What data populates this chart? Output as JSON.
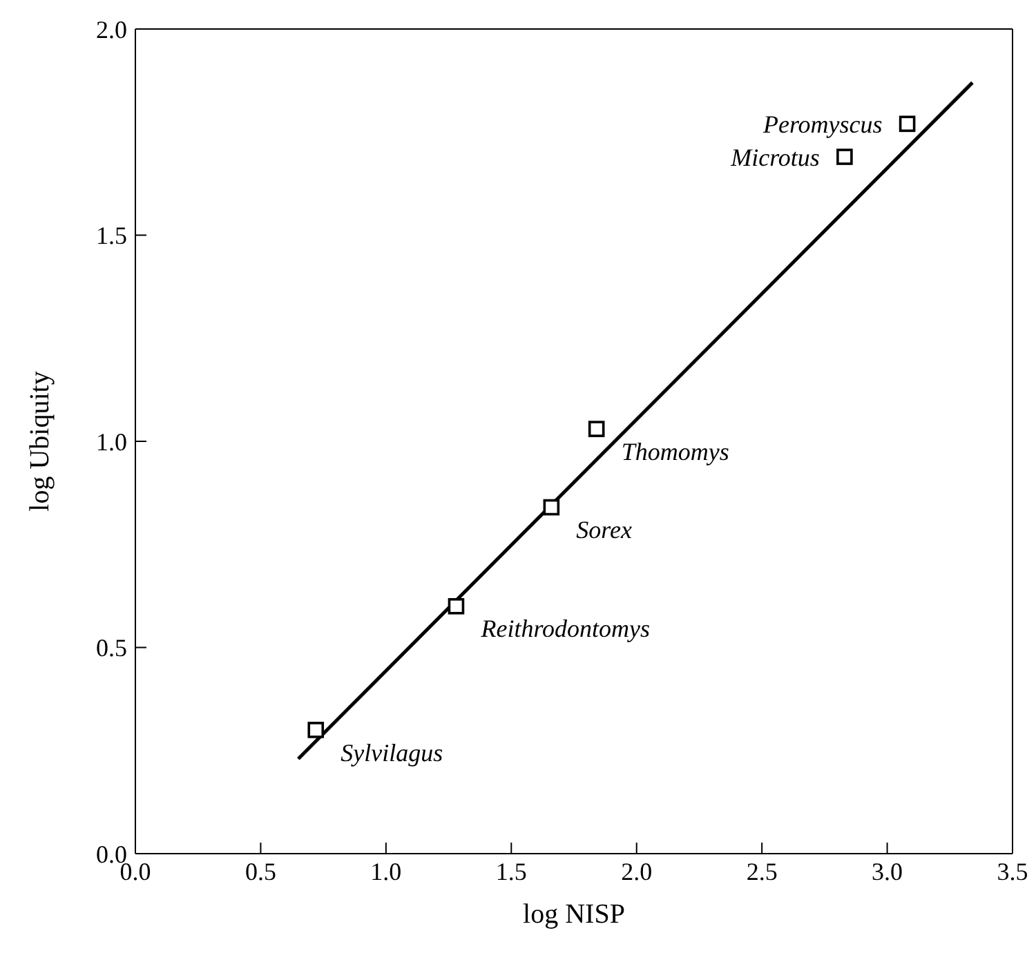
{
  "chart_data": {
    "type": "scatter",
    "xlabel": "log NISP",
    "ylabel": "log Ubiquity",
    "series": [
      {
        "color": "#000000",
        "marker": "square",
        "x": [
          0.72,
          1.28,
          1.66,
          1.84,
          2.83,
          3.08
        ],
        "values": [
          0.3,
          0.6,
          0.84,
          1.03,
          1.69,
          1.77
        ]
      },
      {
        "type": "line",
        "color": "#000000",
        "marker": "none",
        "line_style": "solid",
        "x": [
          0.65,
          3.34
        ],
        "values": [
          0.23,
          1.87
        ]
      }
    ],
    "annotations": [
      {
        "text": "Sylvilagus",
        "x": 0.72,
        "y": 0.3
      },
      {
        "text": "Reithrodontomys",
        "x": 1.28,
        "y": 0.6
      },
      {
        "text": "Sorex",
        "x": 1.66,
        "y": 0.84
      },
      {
        "text": "Thomomys",
        "x": 1.84,
        "y": 1.03
      },
      {
        "text": "Microtus",
        "x": 2.83,
        "y": 1.69
      },
      {
        "text": "Peromyscus",
        "x": 3.08,
        "y": 1.77
      }
    ],
    "xlim": [
      0,
      3.5
    ],
    "xticks": [
      {
        "value": 0,
        "label": "0.0"
      },
      {
        "value": 0.5,
        "label": "0.5"
      },
      {
        "value": 1,
        "label": "1.0"
      },
      {
        "value": 1.5,
        "label": "1.5"
      },
      {
        "value": 2,
        "label": "2.0"
      },
      {
        "value": 2.5,
        "label": "2.5"
      },
      {
        "value": 3,
        "label": "3.0"
      },
      {
        "value": 3.5,
        "label": "3.5"
      }
    ],
    "ylim": [
      0,
      2
    ],
    "yticks": [
      {
        "value": 0,
        "label": "0.0"
      },
      {
        "value": 0.5,
        "label": "0.5"
      },
      {
        "value": 1,
        "label": "1.0"
      },
      {
        "value": 1.5,
        "label": "1.5"
      },
      {
        "value": 2,
        "label": "2.0"
      }
    ],
    "legend": false
  }
}
